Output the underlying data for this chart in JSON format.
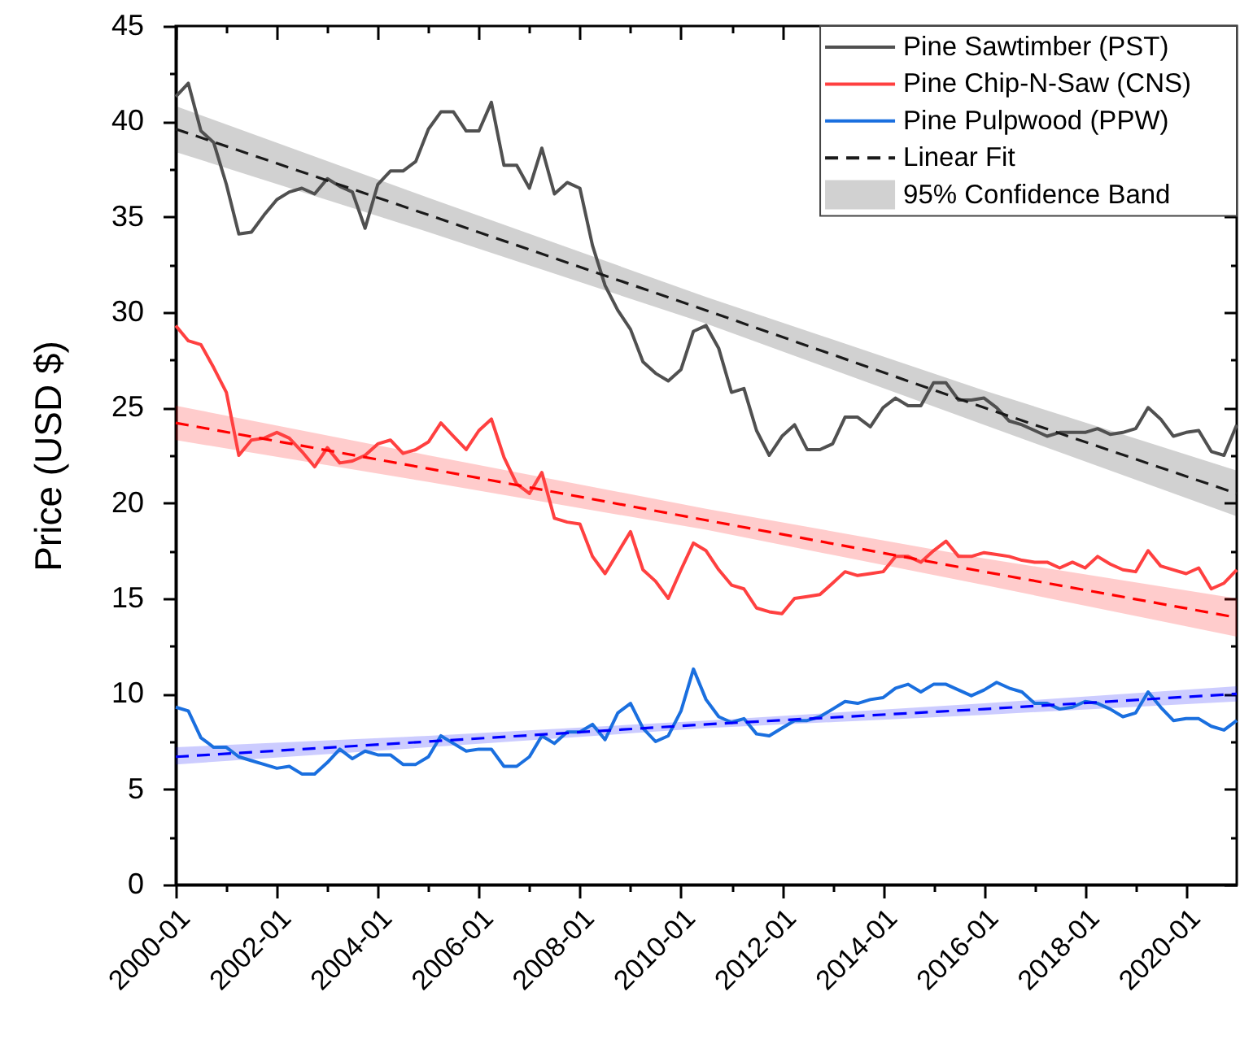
{
  "chart_data": {
    "type": "line",
    "ylabel": "Price (USD $)",
    "x": [
      "2000-01",
      "2000-04",
      "2000-07",
      "2000-10",
      "2001-01",
      "2001-04",
      "2001-07",
      "2001-10",
      "2002-01",
      "2002-04",
      "2002-07",
      "2002-10",
      "2003-01",
      "2003-04",
      "2003-07",
      "2003-10",
      "2004-01",
      "2004-04",
      "2004-07",
      "2004-10",
      "2005-01",
      "2005-04",
      "2005-07",
      "2005-10",
      "2006-01",
      "2006-04",
      "2006-07",
      "2006-10",
      "2007-01",
      "2007-04",
      "2007-07",
      "2007-10",
      "2008-01",
      "2008-04",
      "2008-07",
      "2008-10",
      "2009-01",
      "2009-04",
      "2009-07",
      "2009-10",
      "2010-01",
      "2010-04",
      "2010-07",
      "2010-10",
      "2011-01",
      "2011-04",
      "2011-07",
      "2011-10",
      "2012-01",
      "2012-04",
      "2012-07",
      "2012-10",
      "2013-01",
      "2013-04",
      "2013-07",
      "2013-10",
      "2014-01",
      "2014-04",
      "2014-07",
      "2014-10",
      "2015-01",
      "2015-04",
      "2015-07",
      "2015-10",
      "2016-01",
      "2016-04",
      "2016-07",
      "2016-10",
      "2017-01",
      "2017-04",
      "2017-07",
      "2017-10",
      "2018-01",
      "2018-04",
      "2018-07",
      "2018-10",
      "2019-01",
      "2019-04",
      "2019-07",
      "2019-10",
      "2020-01",
      "2020-04",
      "2020-07",
      "2020-10",
      "2021-01"
    ],
    "xlim": [
      "2000-01",
      "2021-01"
    ],
    "xticks": [
      "2000-01",
      {
        "value": "2001-01",
        "label": null
      },
      "2002-01",
      {
        "value": "2003-01",
        "label": null
      },
      "2004-01",
      {
        "value": "2005-01",
        "label": null
      },
      "2006-01",
      {
        "value": "2007-01",
        "label": null
      },
      "2008-01",
      {
        "value": "2009-01",
        "label": null
      },
      "2010-01",
      {
        "value": "2011-01",
        "label": null
      },
      "2012-01",
      {
        "value": "2013-01",
        "label": null
      },
      "2014-01",
      {
        "value": "2015-01",
        "label": null
      },
      "2016-01",
      {
        "value": "2017-01",
        "label": null
      },
      "2018-01",
      {
        "value": "2019-01",
        "label": null
      },
      "2020-01"
    ],
    "ylim": [
      0,
      45
    ],
    "yticks": [
      0,
      {
        "value": 2.5,
        "label": null
      },
      5,
      {
        "value": 7.5,
        "label": null
      },
      10,
      {
        "value": 12.5,
        "label": null
      },
      15,
      {
        "value": 17.5,
        "label": null
      },
      20,
      {
        "value": 22.5,
        "label": null
      },
      25,
      {
        "value": 27.5,
        "label": null
      },
      30,
      {
        "value": 32.5,
        "label": null
      },
      35,
      {
        "value": 37.5,
        "label": null
      },
      40,
      {
        "value": 42.5,
        "label": null
      },
      45
    ],
    "legend": "top right",
    "series": [
      {
        "name": "Pine Sawtimber (PST)",
        "color": "#505050",
        "values": [
          41.3,
          42.0,
          39.5,
          38.9,
          36.7,
          34.1,
          34.2,
          35.1,
          35.9,
          36.3,
          36.5,
          36.2,
          37.0,
          36.6,
          36.3,
          34.4,
          36.7,
          37.4,
          37.4,
          37.9,
          39.6,
          40.5,
          40.5,
          39.5,
          39.5,
          41.0,
          37.7,
          37.7,
          36.5,
          38.6,
          36.2,
          36.8,
          36.5,
          33.5,
          31.4,
          30.1,
          29.1,
          27.4,
          26.8,
          26.4,
          27.0,
          29.0,
          29.3,
          28.1,
          25.8,
          26.0,
          23.8,
          22.5,
          23.5,
          24.1,
          22.8,
          22.8,
          23.1,
          24.5,
          24.5,
          24.0,
          25.0,
          25.5,
          25.1,
          25.1,
          26.3,
          26.3,
          25.4,
          25.4,
          25.5,
          25.0,
          24.3,
          24.1,
          23.8,
          23.5,
          23.7,
          23.7,
          23.7,
          23.9,
          23.6,
          23.7,
          23.9,
          25.0,
          24.4,
          23.5,
          23.7,
          23.8,
          22.7,
          22.5,
          24.1
        ]
      },
      {
        "name": "Pine Chip-N-Saw (CNS)",
        "color": "#ff4040",
        "values": [
          29.3,
          28.5,
          28.3,
          27.1,
          25.8,
          22.5,
          23.3,
          23.4,
          23.7,
          23.4,
          22.7,
          21.9,
          22.9,
          22.1,
          22.2,
          22.5,
          23.1,
          23.3,
          22.6,
          22.8,
          23.2,
          24.2,
          23.5,
          22.8,
          23.8,
          24.4,
          22.4,
          21.0,
          20.5,
          21.6,
          19.2,
          19.0,
          18.9,
          17.2,
          16.3,
          17.4,
          18.5,
          16.5,
          15.9,
          15.0,
          16.5,
          17.9,
          17.5,
          16.5,
          15.7,
          15.5,
          14.5,
          14.3,
          14.2,
          15.0,
          15.1,
          15.2,
          15.8,
          16.4,
          16.2,
          16.3,
          16.4,
          17.2,
          17.2,
          16.9,
          17.5,
          18.0,
          17.2,
          17.2,
          17.4,
          17.3,
          17.2,
          17.0,
          16.9,
          16.9,
          16.6,
          16.9,
          16.6,
          17.2,
          16.8,
          16.5,
          16.4,
          17.5,
          16.7,
          16.5,
          16.3,
          16.6,
          15.5,
          15.8,
          16.5
        ]
      },
      {
        "name": "Pine Pulpwood (PPW)",
        "color": "#1a6fdf",
        "values": [
          9.3,
          9.1,
          7.7,
          7.2,
          7.2,
          6.7,
          6.5,
          6.3,
          6.1,
          6.2,
          5.8,
          5.8,
          6.4,
          7.1,
          6.6,
          7.0,
          6.8,
          6.8,
          6.3,
          6.3,
          6.7,
          7.8,
          7.4,
          7.0,
          7.1,
          7.1,
          6.2,
          6.2,
          6.7,
          7.8,
          7.4,
          8.0,
          8.0,
          8.4,
          7.6,
          9.0,
          9.5,
          8.2,
          7.5,
          7.8,
          9.1,
          11.3,
          9.7,
          8.8,
          8.5,
          8.7,
          7.9,
          7.8,
          8.2,
          8.6,
          8.6,
          8.8,
          9.2,
          9.6,
          9.5,
          9.7,
          9.8,
          10.3,
          10.5,
          10.1,
          10.5,
          10.5,
          10.2,
          9.9,
          10.2,
          10.6,
          10.3,
          10.1,
          9.5,
          9.5,
          9.2,
          9.3,
          9.6,
          9.5,
          9.2,
          8.8,
          9.0,
          10.1,
          9.3,
          8.6,
          8.7,
          8.7,
          8.3,
          8.1,
          8.6
        ]
      },
      {
        "name": "Linear Fit",
        "type": "line",
        "line_style": "dashed",
        "color": "#1a1a1a",
        "x": [
          "2000-01",
          "2005-01",
          "2010-07",
          "2016-01",
          "2021-01"
        ],
        "values": [
          39.6,
          35.1,
          30.1,
          25.0,
          20.5
        ],
        "lower": [
          38.4,
          34.2,
          29.4,
          24.1,
          19.3
        ],
        "upper": [
          40.8,
          36.0,
          30.8,
          25.9,
          21.7
        ]
      },
      {
        "type": "line",
        "line_style": "dashed",
        "color": "#ff0000",
        "x": [
          "2000-01",
          "2005-01",
          "2010-07",
          "2016-01",
          "2021-01"
        ],
        "values": [
          24.2,
          21.8,
          19.1,
          16.4,
          14.0
        ],
        "lower": [
          23.3,
          21.1,
          18.6,
          15.7,
          13.0
        ],
        "upper": [
          25.1,
          22.5,
          19.7,
          17.1,
          15.0
        ]
      },
      {
        "type": "line",
        "line_style": "dashed",
        "color": "#0000ff",
        "x": [
          "2000-01",
          "2005-01",
          "2010-07",
          "2016-01",
          "2021-01"
        ],
        "values": [
          6.7,
          7.5,
          8.4,
          9.2,
          10.0
        ],
        "lower": [
          6.3,
          7.2,
          8.2,
          8.9,
          9.6
        ],
        "upper": [
          7.2,
          7.8,
          8.6,
          9.5,
          10.4
        ]
      }
    ],
    "annotations": [
      "95% Confidence Band"
    ]
  }
}
